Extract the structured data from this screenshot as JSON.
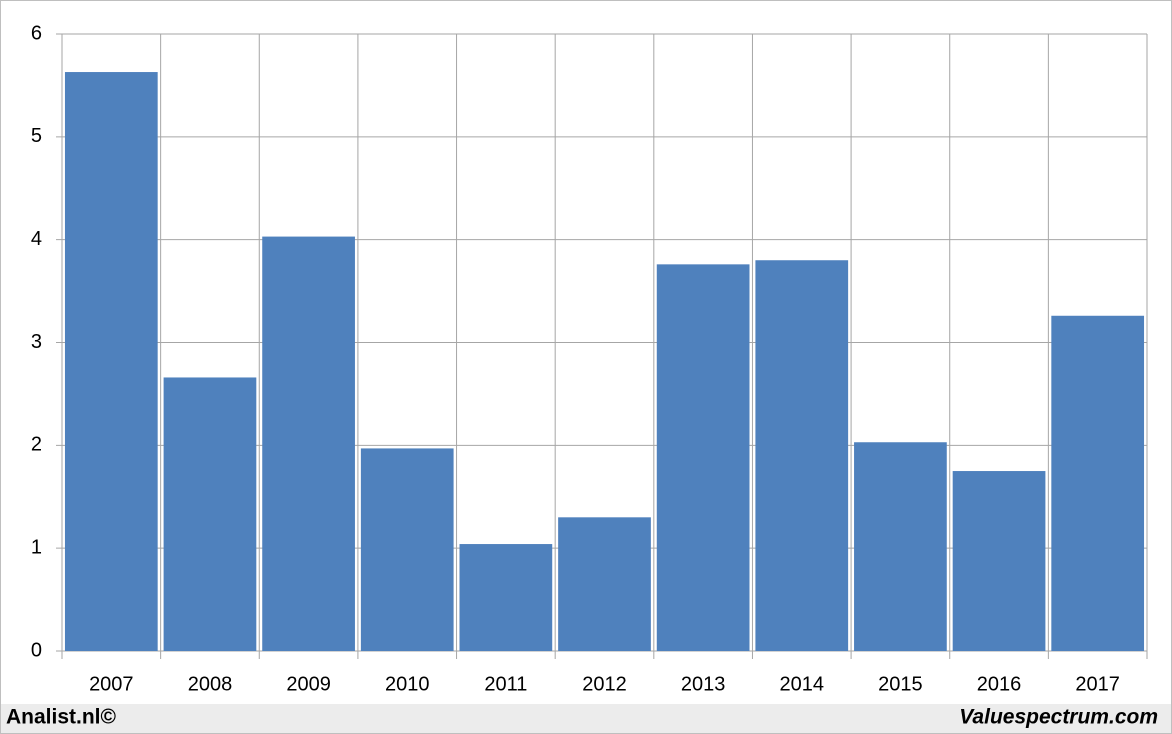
{
  "chart_data": {
    "type": "bar",
    "categories": [
      "2007",
      "2008",
      "2009",
      "2010",
      "2011",
      "2012",
      "2013",
      "2014",
      "2015",
      "2016",
      "2017"
    ],
    "values": [
      5.63,
      2.66,
      4.03,
      1.97,
      1.04,
      1.3,
      3.76,
      3.8,
      2.03,
      1.75,
      3.26
    ],
    "color": "#4f81bd",
    "ylim": [
      0,
      6
    ],
    "yticks": [
      0,
      1,
      2,
      3,
      4,
      5,
      6
    ],
    "grid": true,
    "source_left": "Analist.nl©",
    "source_right": "Valuespectrum.com"
  }
}
